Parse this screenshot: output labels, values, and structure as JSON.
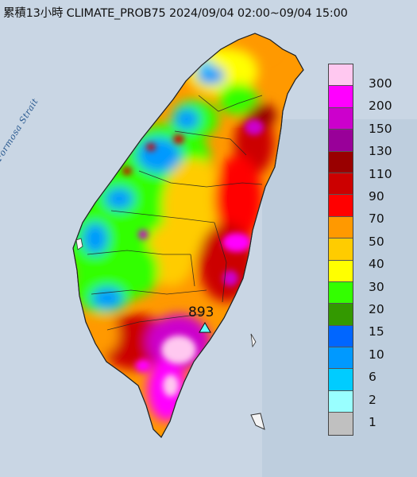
{
  "title": "累積13小時 CLIMATE_PROB75 2024/09/04 02:00~09/04 15:00",
  "strait_label": "Formosa Strait",
  "max_value": "893",
  "legend": [
    {
      "label": "300",
      "color": "#ffc8f0"
    },
    {
      "label": "200",
      "color": "#ff00ff"
    },
    {
      "label": "150",
      "color": "#cc00cc"
    },
    {
      "label": "130",
      "color": "#990099"
    },
    {
      "label": "110",
      "color": "#990000"
    },
    {
      "label": "90",
      "color": "#cc0000"
    },
    {
      "label": "70",
      "color": "#ff0000"
    },
    {
      "label": "50",
      "color": "#ff9900"
    },
    {
      "label": "40",
      "color": "#ffcc00"
    },
    {
      "label": "30",
      "color": "#ffff00"
    },
    {
      "label": "20",
      "color": "#33ff00"
    },
    {
      "label": "15",
      "color": "#339900"
    },
    {
      "label": "10",
      "color": "#0066ff"
    },
    {
      "label": "6",
      "color": "#0099ff"
    },
    {
      "label": "2",
      "color": "#00ccff"
    },
    {
      "label": "1",
      "color": "#99ffff"
    },
    {
      "label": "",
      "color": "#c0c0c0"
    }
  ]
}
